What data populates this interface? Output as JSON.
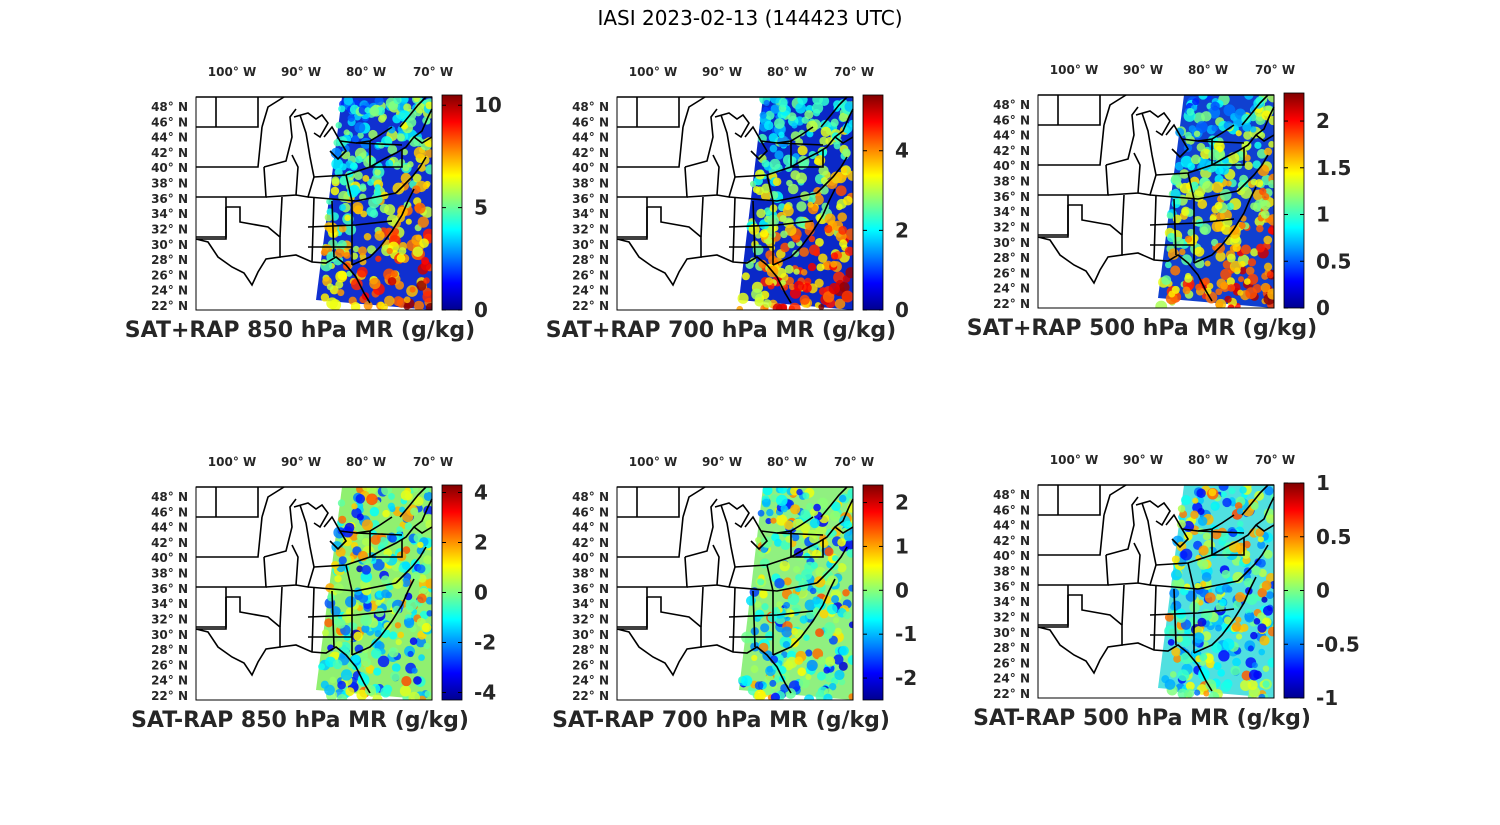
{
  "figure_title": "IASI 2023-02-13 (144423 UTC)",
  "colormap": [
    "#00008f",
    "#0000ff",
    "#0080ff",
    "#00ffff",
    "#80ff80",
    "#ffff00",
    "#ff8000",
    "#ff0000",
    "#800000"
  ],
  "chart_data": [
    {
      "type": "heatmap",
      "title": "SAT+RAP 850 hPa MR (g/kg)",
      "lon_ticks": [
        "100° W",
        "90° W",
        "80° W",
        "70° W"
      ],
      "lat_ticks": [
        "48° N",
        "46° N",
        "44° N",
        "42° N",
        "40° N",
        "38° N",
        "36° N",
        "34° N",
        "32° N",
        "30° N",
        "28° N",
        "26° N",
        "24° N",
        "22° N"
      ],
      "colorbar": {
        "min": 0,
        "max": 10.5,
        "ticks": [
          {
            "value": 0,
            "label": "0"
          },
          {
            "value": 5,
            "label": "5"
          },
          {
            "value": 10,
            "label": "10"
          }
        ]
      },
      "swath": "west",
      "bg": "#1030d0"
    },
    {
      "type": "heatmap",
      "title": "SAT+RAP 700 hPa MR (g/kg)",
      "lon_ticks": [
        "100° W",
        "90° W",
        "80° W",
        "70° W"
      ],
      "lat_ticks": [
        "48° N",
        "46° N",
        "44° N",
        "42° N",
        "40° N",
        "38° N",
        "36° N",
        "34° N",
        "32° N",
        "30° N",
        "28° N",
        "26° N",
        "24° N",
        "22° N"
      ],
      "colorbar": {
        "min": 0,
        "max": 5.4,
        "ticks": [
          {
            "value": 0,
            "label": "0"
          },
          {
            "value": 2,
            "label": "2"
          },
          {
            "value": 4,
            "label": "4"
          }
        ]
      },
      "swath": "mid",
      "bg": "#0a28c8"
    },
    {
      "type": "heatmap",
      "title": "SAT+RAP 500 hPa MR (g/kg)",
      "lon_ticks": [
        "100° W",
        "90° W",
        "80° W",
        "70° W"
      ],
      "lat_ticks": [
        "48° N",
        "46° N",
        "44° N",
        "42° N",
        "40° N",
        "38° N",
        "36° N",
        "34° N",
        "32° N",
        "30° N",
        "28° N",
        "26° N",
        "24° N",
        "22° N"
      ],
      "colorbar": {
        "min": 0,
        "max": 2.3,
        "ticks": [
          {
            "value": 0,
            "label": "0"
          },
          {
            "value": 0.5,
            "label": "0.5"
          },
          {
            "value": 1,
            "label": "1"
          },
          {
            "value": 1.5,
            "label": "1.5"
          },
          {
            "value": 2,
            "label": "2"
          }
        ]
      },
      "swath": "east",
      "bg": "#1040d0"
    },
    {
      "type": "heatmap",
      "title": "SAT-RAP 850 hPa MR (g/kg)",
      "lon_ticks": [
        "100° W",
        "90° W",
        "80° W",
        "70° W"
      ],
      "lat_ticks": [
        "48° N",
        "46° N",
        "44° N",
        "42° N",
        "40° N",
        "38° N",
        "36° N",
        "34° N",
        "32° N",
        "30° N",
        "28° N",
        "26° N",
        "24° N",
        "22° N"
      ],
      "colorbar": {
        "min": -4.3,
        "max": 4.3,
        "ticks": [
          {
            "value": -4,
            "label": "-4"
          },
          {
            "value": -2,
            "label": "-2"
          },
          {
            "value": 0,
            "label": "0"
          },
          {
            "value": 2,
            "label": "2"
          },
          {
            "value": 4,
            "label": "4"
          }
        ]
      },
      "swath": "west",
      "bg": "#90f070"
    },
    {
      "type": "heatmap",
      "title": "SAT-RAP 700 hPa MR (g/kg)",
      "lon_ticks": [
        "100° W",
        "90° W",
        "80° W",
        "70° W"
      ],
      "lat_ticks": [
        "48° N",
        "46° N",
        "44° N",
        "42° N",
        "40° N",
        "38° N",
        "36° N",
        "34° N",
        "32° N",
        "30° N",
        "28° N",
        "26° N",
        "24° N",
        "22° N"
      ],
      "colorbar": {
        "min": -2.5,
        "max": 2.4,
        "ticks": [
          {
            "value": -2,
            "label": "-2"
          },
          {
            "value": -1,
            "label": "-1"
          },
          {
            "value": 0,
            "label": "0"
          },
          {
            "value": 1,
            "label": "1"
          },
          {
            "value": 2,
            "label": "2"
          }
        ]
      },
      "swath": "mid",
      "bg": "#90f080"
    },
    {
      "type": "heatmap",
      "title": "SAT-RAP 500 hPa MR (g/kg)",
      "lon_ticks": [
        "100° W",
        "90° W",
        "80° W",
        "70° W"
      ],
      "lat_ticks": [
        "48° N",
        "46° N",
        "44° N",
        "42° N",
        "40° N",
        "38° N",
        "36° N",
        "34° N",
        "32° N",
        "30° N",
        "28° N",
        "26° N",
        "24° N",
        "22° N"
      ],
      "colorbar": {
        "min": -1,
        "max": 1,
        "ticks": [
          {
            "value": -1,
            "label": "-1"
          },
          {
            "value": -0.5,
            "label": "-0.5"
          },
          {
            "value": 0,
            "label": "0"
          },
          {
            "value": 0.5,
            "label": "0.5"
          },
          {
            "value": 1,
            "label": "1"
          }
        ]
      },
      "swath": "east",
      "bg": "#50e0e0"
    }
  ]
}
